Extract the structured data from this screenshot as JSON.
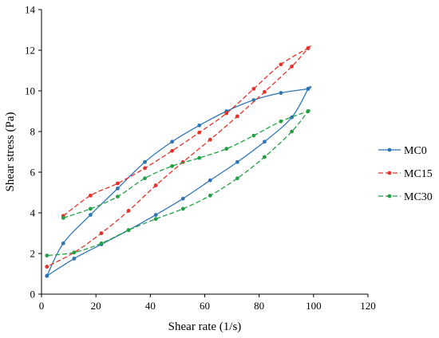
{
  "chart_data": {
    "type": "line",
    "title": "",
    "xlabel": "Shear rate (1/s)",
    "ylabel": "Shear stress (Pa)",
    "xlim": [
      0,
      120
    ],
    "ylim": [
      0,
      14
    ],
    "xticks": [
      0,
      20,
      40,
      60,
      80,
      100,
      120
    ],
    "yticks": [
      0,
      2,
      4,
      6,
      8,
      10,
      12,
      14
    ],
    "grid": false,
    "legend_position": "right",
    "series": [
      {
        "name": "MC0",
        "color": "#2E75B6",
        "dash": "solid",
        "x": [
          2,
          8,
          18,
          28,
          38,
          48,
          58,
          68,
          78,
          88,
          98,
          98,
          92,
          82,
          72,
          62,
          52,
          42,
          32,
          22,
          12,
          2
        ],
        "y": [
          0.9,
          2.5,
          3.9,
          5.2,
          6.5,
          7.5,
          8.3,
          9.0,
          9.55,
          9.9,
          10.1,
          10.1,
          8.7,
          7.5,
          6.5,
          5.6,
          4.7,
          3.9,
          3.15,
          2.45,
          1.75,
          0.9
        ]
      },
      {
        "name": "MC15",
        "color": "#E8312B",
        "dash": "dashed",
        "x": [
          8,
          18,
          28,
          38,
          48,
          58,
          68,
          78,
          88,
          98,
          98,
          92,
          82,
          72,
          62,
          52,
          42,
          32,
          22,
          12,
          2
        ],
        "y": [
          3.85,
          4.85,
          5.45,
          6.2,
          7.05,
          7.95,
          8.9,
          10.1,
          11.3,
          12.1,
          12.1,
          11.2,
          9.95,
          8.75,
          7.6,
          6.5,
          5.35,
          4.1,
          3.0,
          2.05,
          1.35
        ]
      },
      {
        "name": "MC30",
        "color": "#22A046",
        "dash": "dashed",
        "x": [
          8,
          18,
          28,
          38,
          48,
          58,
          68,
          78,
          88,
          98,
          98,
          92,
          82,
          72,
          62,
          52,
          42,
          32,
          22,
          12,
          2
        ],
        "y": [
          3.75,
          4.2,
          4.8,
          5.7,
          6.3,
          6.7,
          7.15,
          7.8,
          8.5,
          9.0,
          9.0,
          8.0,
          6.75,
          5.7,
          4.85,
          4.2,
          3.7,
          3.15,
          2.5,
          2.05,
          1.9
        ]
      }
    ]
  }
}
